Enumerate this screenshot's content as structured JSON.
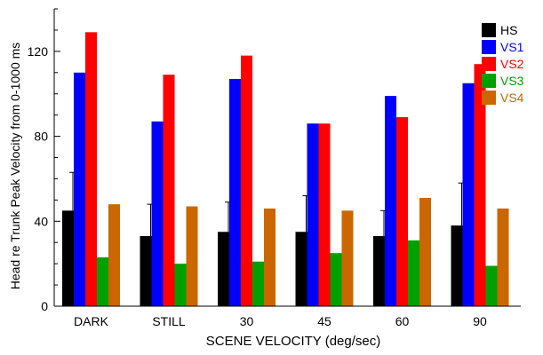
{
  "chart_data": {
    "type": "bar",
    "title": "",
    "xlabel": "SCENE VELOCITY (deg/sec)",
    "ylabel": "Head re Trunk Peak Velocity from 0-1000 ms",
    "ylim": [
      0,
      140
    ],
    "yticks": [
      0,
      40,
      80,
      120
    ],
    "grid": false,
    "legend_position": "top-right",
    "categories": [
      "DARK",
      "STILL",
      "30",
      "45",
      "60",
      "90"
    ],
    "series": [
      {
        "name": "HS",
        "color": "#000000",
        "values": [
          45,
          33,
          35,
          35,
          33,
          38
        ],
        "error_upper": [
          63,
          48,
          49,
          52,
          45,
          58
        ]
      },
      {
        "name": "VS1",
        "color": "#0000ff",
        "values": [
          110,
          87,
          107,
          86,
          99,
          105
        ]
      },
      {
        "name": "VS2",
        "color": "#ff0000",
        "values": [
          129,
          109,
          118,
          86,
          89,
          114
        ]
      },
      {
        "name": "VS3",
        "color": "#00a000",
        "values": [
          23,
          20,
          21,
          25,
          31,
          19
        ]
      },
      {
        "name": "VS4",
        "color": "#cc6600",
        "values": [
          48,
          47,
          46,
          45,
          51,
          46
        ]
      }
    ]
  }
}
